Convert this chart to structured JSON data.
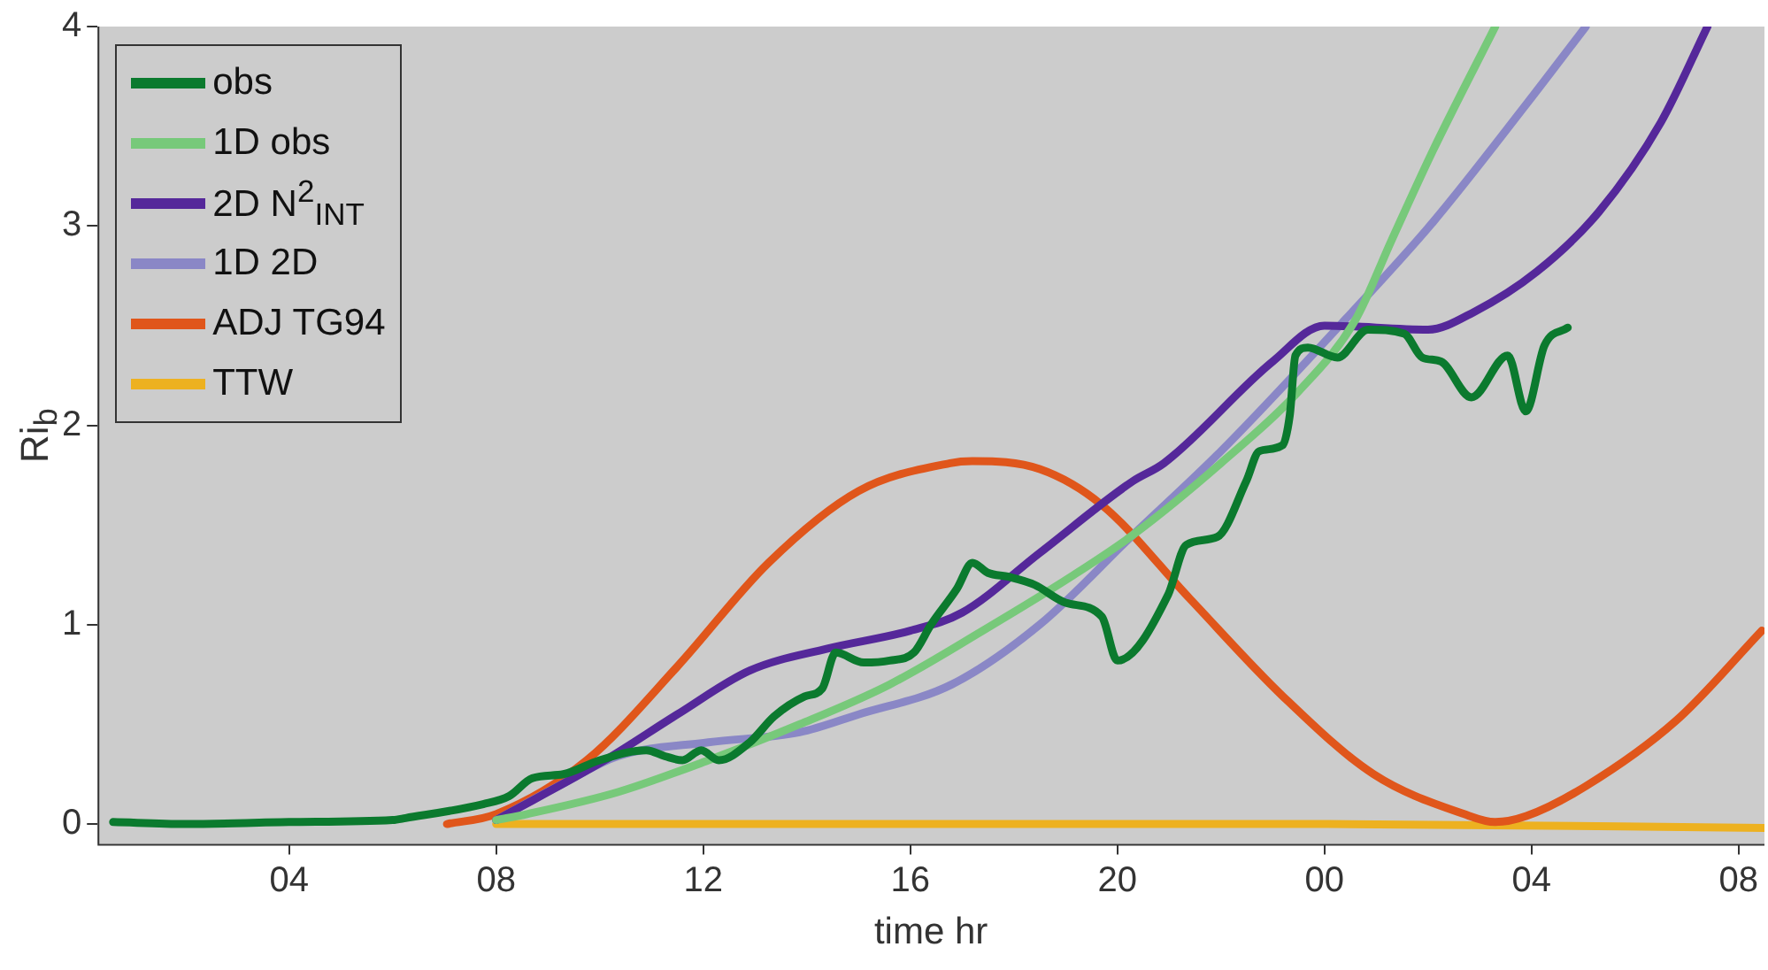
{
  "chart_data": {
    "type": "line",
    "xlabel": "time hr",
    "ylabel": "Ri$_{b}$",
    "xlim": [
      0.3,
      32.5
    ],
    "ylim": [
      -0.1,
      4
    ],
    "xticks": [
      {
        "value": 4,
        "label": "04"
      },
      {
        "value": 8,
        "label": "08"
      },
      {
        "value": 12,
        "label": "12"
      },
      {
        "value": 16,
        "label": "16"
      },
      {
        "value": 20,
        "label": "20"
      },
      {
        "value": 24,
        "label": "00"
      },
      {
        "value": 28,
        "label": "04"
      },
      {
        "value": 32,
        "label": "08"
      }
    ],
    "yticks": [
      0,
      1,
      2,
      3,
      4
    ],
    "grid": false,
    "legend": "top left",
    "marker": "none",
    "line_style": "solid",
    "series": [
      {
        "name": "obs",
        "color": "#0b7a2e",
        "x": [
          0.6,
          2,
          4,
          6,
          6.25,
          7.75,
          8.25,
          8.7,
          9.3,
          10,
          10.9,
          11.26,
          11.6,
          11.96,
          12.3,
          12.9,
          13.37,
          13.96,
          14.3,
          14.56,
          15.1,
          15.6,
          16.07,
          16.4,
          16.9,
          17.2,
          17.5,
          17.9,
          18.4,
          19.0,
          19.7,
          20.0,
          20.98,
          21.33,
          21.93,
          22.49,
          22.74,
          23.19,
          23.33,
          23.44,
          23.68,
          24.25,
          24.84,
          25.54,
          25.89,
          26.25,
          26.84,
          27.54,
          27.89,
          28.25,
          28.7
        ],
        "values": [
          0.01,
          0,
          0.01,
          0.02,
          0.03,
          0.1,
          0.14,
          0.23,
          0.25,
          0.32,
          0.37,
          0.34,
          0.32,
          0.37,
          0.32,
          0.41,
          0.54,
          0.64,
          0.68,
          0.86,
          0.81,
          0.82,
          0.86,
          1.0,
          1.18,
          1.31,
          1.26,
          1.24,
          1.2,
          1.11,
          1.04,
          0.82,
          1.15,
          1.4,
          1.44,
          1.72,
          1.87,
          1.9,
          2.05,
          2.35,
          2.39,
          2.34,
          2.48,
          2.46,
          2.34,
          2.32,
          2.14,
          2.35,
          2.07,
          2.4,
          2.49
        ]
      },
      {
        "name": "1D obs",
        "color": "#77c97a",
        "x": [
          8,
          8.6,
          10.35,
          12.1,
          13.86,
          15.6,
          17.4,
          19.1,
          20.3,
          22.0,
          23.5,
          24.6,
          25.3,
          26.1,
          27.3
        ],
        "values": [
          0.02,
          0.05,
          0.16,
          0.32,
          0.5,
          0.7,
          0.97,
          1.24,
          1.45,
          1.81,
          2.17,
          2.53,
          2.93,
          3.38,
          4.0
        ]
      },
      {
        "name": "2D N$^{2}$$_{INT}$",
        "color": "#55289a",
        "x": [
          8,
          10.1,
          11.5,
          12.9,
          14.4,
          16.0,
          17.0,
          18.5,
          20.3,
          20.9,
          23.0,
          24.0,
          26.0,
          26.9,
          28.1,
          29.3,
          30.5,
          31.4
        ],
        "values": [
          0.02,
          0.32,
          0.55,
          0.77,
          0.88,
          0.97,
          1.06,
          1.36,
          1.72,
          1.81,
          2.32,
          2.5,
          2.48,
          2.57,
          2.77,
          3.07,
          3.52,
          4.0
        ]
      },
      {
        "name": "1D 2D",
        "color": "#8a87c6",
        "x": [
          8,
          9.2,
          10.35,
          12.1,
          13.86,
          15.0,
          16.8,
          18.5,
          20.3,
          22.0,
          24.4,
          26.1,
          27.9,
          29.05
        ],
        "values": [
          0.02,
          0.19,
          0.34,
          0.41,
          0.46,
          0.55,
          0.7,
          1.0,
          1.45,
          1.87,
          2.53,
          3.02,
          3.61,
          4.0
        ]
      },
      {
        "name": "ADJ TG94",
        "color": "#e0561b",
        "x": [
          7.05,
          8.0,
          9.75,
          11.5,
          13.26,
          15.0,
          16.77,
          17.2,
          18.5,
          19.7,
          21.4,
          23.2,
          24.95,
          26.7,
          27.3,
          27.9,
          29.05,
          30.8,
          32.45
        ],
        "values": [
          0.0,
          0.05,
          0.32,
          0.79,
          1.31,
          1.67,
          1.81,
          1.82,
          1.78,
          1.6,
          1.13,
          0.64,
          0.25,
          0.05,
          0.01,
          0.04,
          0.19,
          0.52,
          0.97
        ]
      },
      {
        "name": "TTW",
        "color": "#edb120",
        "x": [
          8,
          16,
          24,
          32.5
        ],
        "values": [
          0.0,
          0.0,
          0.0,
          -0.02
        ]
      }
    ]
  }
}
